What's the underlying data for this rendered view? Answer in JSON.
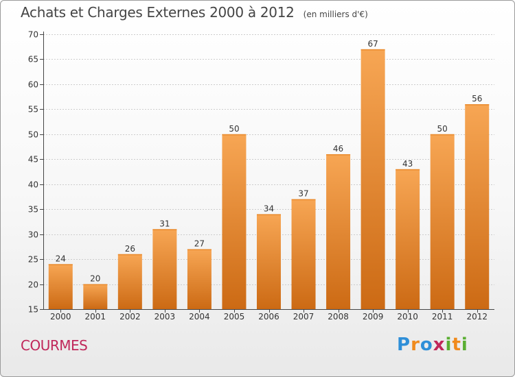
{
  "header": {
    "title": "Achats et Charges Externes 2000 à 2012",
    "subtitle": "(en milliers d'€)"
  },
  "footer": {
    "commune": "COURMES",
    "logo_text": "Proxiti",
    "logo_colors": [
      "#2f8fd8",
      "#f08a1c",
      "#2f8fd8",
      "#c0275a",
      "#5aae32",
      "#f08a1c",
      "#5aae32"
    ]
  },
  "colors": {
    "bar_light": "#f7a654",
    "bar_dark": "#cc6a14",
    "axis": "#444444",
    "grid": "#cccccc",
    "label": "#333333"
  },
  "chart_data": {
    "type": "bar",
    "categories": [
      "2000",
      "2001",
      "2002",
      "2003",
      "2004",
      "2005",
      "2006",
      "2007",
      "2008",
      "2009",
      "2010",
      "2011",
      "2012"
    ],
    "values": [
      24,
      20,
      26,
      31,
      27,
      50,
      34,
      37,
      46,
      67,
      43,
      50,
      56
    ],
    "ylim": [
      15,
      70
    ],
    "yticks": [
      15,
      20,
      25,
      30,
      35,
      40,
      45,
      50,
      55,
      60,
      65,
      70
    ],
    "grid": true,
    "data_labels": true
  }
}
